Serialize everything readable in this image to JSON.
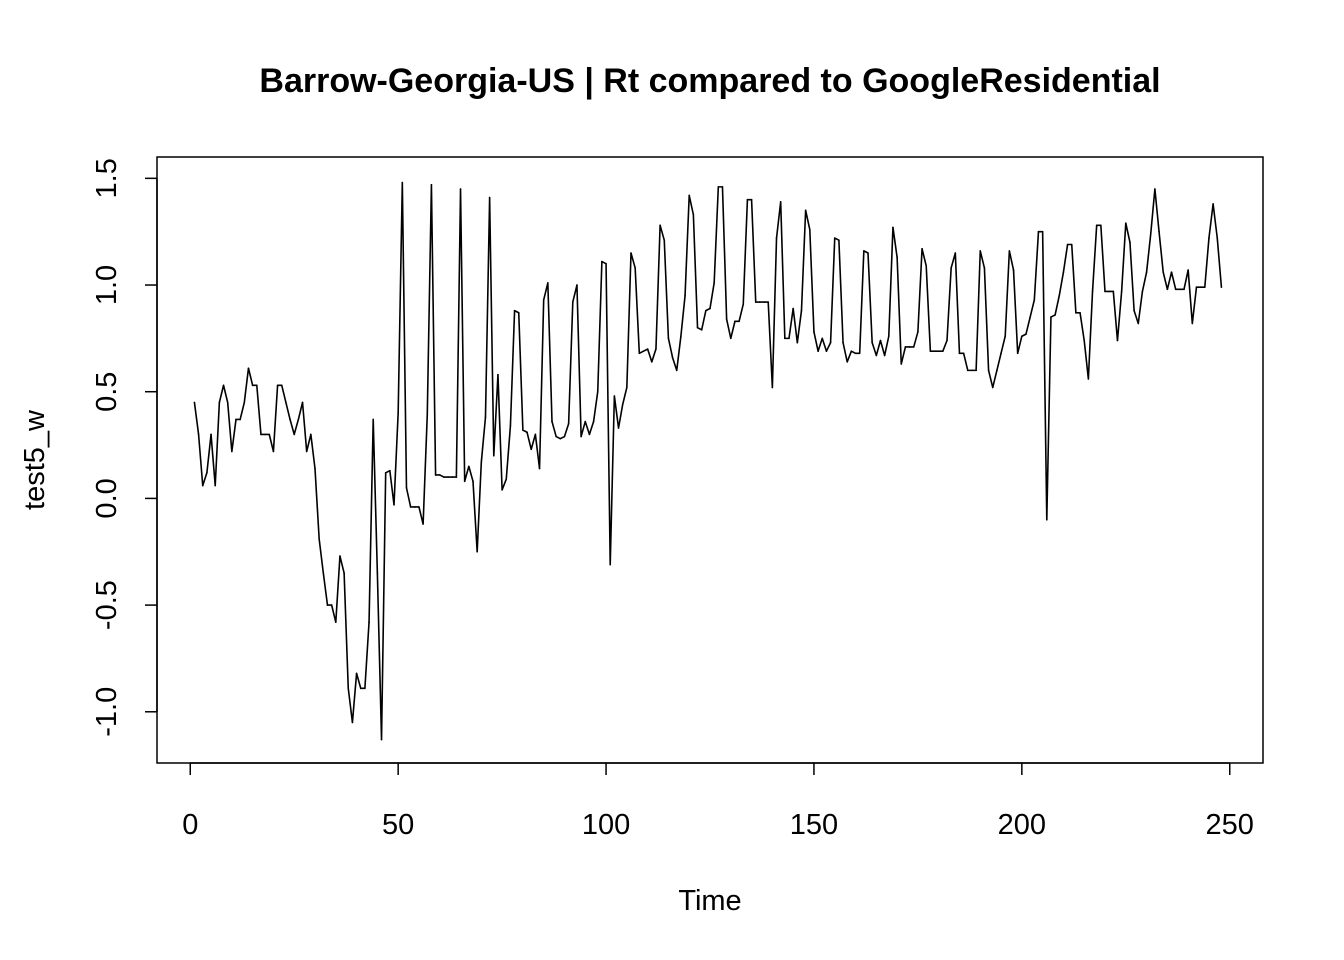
{
  "chart_data": {
    "type": "line",
    "title": "Barrow-Georgia-US | Rt compared to GoogleResidential",
    "xlabel": "Time",
    "ylabel": "test5_w",
    "xlim": [
      -8,
      258
    ],
    "ylim": [
      -1.24,
      1.6
    ],
    "x_ticks": [
      0,
      50,
      100,
      150,
      200,
      250
    ],
    "x_tick_labels": [
      "0",
      "50",
      "100",
      "150",
      "200",
      "250"
    ],
    "y_ticks": [
      -1.0,
      -0.5,
      0.0,
      0.5,
      1.0,
      1.5
    ],
    "y_tick_labels": [
      "-1.0",
      "-0.5",
      "0.0",
      "0.5",
      "1.0",
      "1.5"
    ],
    "grid": false,
    "legend": "none",
    "series": [
      {
        "x_start": 1,
        "values": [
          0.45,
          0.3,
          0.06,
          0.12,
          0.3,
          0.06,
          0.45,
          0.53,
          0.45,
          0.22,
          0.37,
          0.37,
          0.45,
          0.61,
          0.53,
          0.53,
          0.3,
          0.3,
          0.3,
          0.22,
          0.53,
          0.53,
          0.45,
          0.37,
          0.3,
          0.37,
          0.45,
          0.22,
          0.3,
          0.14,
          -0.19,
          -0.35,
          -0.5,
          -0.5,
          -0.58,
          -0.27,
          -0.35,
          -0.89,
          -1.05,
          -0.82,
          -0.89,
          -0.89,
          -0.58,
          0.37,
          -0.35,
          -1.13,
          0.12,
          0.13,
          -0.03,
          0.4,
          1.48,
          0.05,
          -0.04,
          -0.04,
          -0.04,
          -0.12,
          0.39,
          1.47,
          0.11,
          0.11,
          0.1,
          0.1,
          0.1,
          0.1,
          1.45,
          0.08,
          0.15,
          0.08,
          -0.25,
          0.17,
          0.38,
          1.41,
          0.2,
          0.58,
          0.04,
          0.09,
          0.34,
          0.88,
          0.87,
          0.32,
          0.31,
          0.23,
          0.3,
          0.14,
          0.93,
          1.01,
          0.36,
          0.29,
          0.28,
          0.29,
          0.35,
          0.92,
          1.0,
          0.29,
          0.36,
          0.3,
          0.36,
          0.5,
          1.11,
          1.1,
          -0.31,
          0.48,
          0.33,
          0.44,
          0.52,
          1.15,
          1.08,
          0.68,
          0.69,
          0.7,
          0.64,
          0.7,
          1.28,
          1.21,
          0.75,
          0.66,
          0.6,
          0.76,
          0.95,
          1.42,
          1.33,
          0.8,
          0.79,
          0.88,
          0.89,
          1.01,
          1.46,
          1.46,
          0.84,
          0.75,
          0.83,
          0.83,
          0.91,
          1.4,
          1.4,
          0.92,
          0.92,
          0.92,
          0.92,
          0.52,
          1.22,
          1.39,
          0.75,
          0.75,
          0.89,
          0.73,
          0.88,
          1.35,
          1.26,
          0.78,
          0.69,
          0.75,
          0.69,
          0.73,
          1.22,
          1.21,
          0.73,
          0.64,
          0.69,
          0.68,
          0.68,
          1.16,
          1.15,
          0.73,
          0.67,
          0.74,
          0.67,
          0.76,
          1.27,
          1.13,
          0.63,
          0.71,
          0.71,
          0.71,
          0.78,
          1.17,
          1.09,
          0.69,
          0.69,
          0.69,
          0.69,
          0.74,
          1.08,
          1.15,
          0.68,
          0.68,
          0.6,
          0.6,
          0.6,
          1.16,
          1.08,
          0.6,
          0.52,
          0.6,
          0.68,
          0.76,
          1.16,
          1.07,
          0.68,
          0.76,
          0.77,
          0.85,
          0.93,
          1.25,
          1.25,
          -0.1,
          0.85,
          0.86,
          0.95,
          1.06,
          1.19,
          1.19,
          0.87,
          0.87,
          0.74,
          0.56,
          0.97,
          1.28,
          1.28,
          0.97,
          0.97,
          0.97,
          0.74,
          0.97,
          1.29,
          1.2,
          0.88,
          0.82,
          0.97,
          1.06,
          1.24,
          1.45,
          1.25,
          1.06,
          0.98,
          1.06,
          0.98,
          0.98,
          0.98,
          1.07,
          0.82,
          0.99,
          0.99,
          0.99,
          1.22,
          1.38,
          1.22,
          0.99
        ]
      }
    ]
  }
}
